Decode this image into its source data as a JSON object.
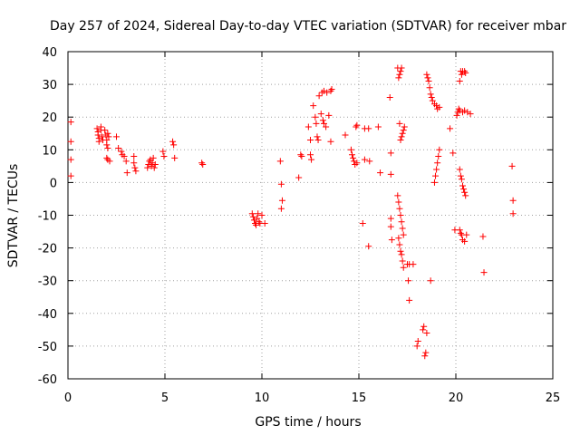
{
  "chart_data": {
    "type": "scatter",
    "title": "Day 257 of 2024, Sidereal Day-to-day VTEC variation (SDTVAR) for receiver mbar",
    "xlabel": "GPS time / hours",
    "ylabel": "SDTVAR / TECUs",
    "xlim": [
      0,
      25
    ],
    "ylim": [
      -60,
      40
    ],
    "grid": true,
    "marker": "+",
    "colors": {
      "points": "#ff0000",
      "grid": "#a0a0a0",
      "frame": "#000000"
    },
    "x_ticks": [
      "0",
      "5",
      "10",
      "15",
      "20",
      "25"
    ],
    "y_ticks": [
      "40",
      "30",
      "20",
      "10",
      "0",
      "-10",
      "-20",
      "-30",
      "-40",
      "-50",
      "-60"
    ],
    "series": [
      {
        "name": "SDTVAR",
        "points": [
          [
            0.15,
            18.5
          ],
          [
            0.15,
            12.5
          ],
          [
            0.15,
            7
          ],
          [
            0.15,
            2
          ],
          [
            1.5,
            16.5
          ],
          [
            1.55,
            15.5
          ],
          [
            1.55,
            14.5
          ],
          [
            1.6,
            13.5
          ],
          [
            1.6,
            12.5
          ],
          [
            1.7,
            17
          ],
          [
            1.7,
            16
          ],
          [
            1.75,
            14
          ],
          [
            1.8,
            13
          ],
          [
            1.9,
            16
          ],
          [
            1.95,
            14.5
          ],
          [
            2.0,
            13
          ],
          [
            2.0,
            11.5
          ],
          [
            2.05,
            15
          ],
          [
            2.05,
            10.5
          ],
          [
            2.1,
            14
          ],
          [
            2.0,
            7.5
          ],
          [
            2.05,
            7
          ],
          [
            2.15,
            6.5
          ],
          [
            2.5,
            14
          ],
          [
            2.6,
            10.5
          ],
          [
            2.75,
            9.5
          ],
          [
            2.8,
            8.5
          ],
          [
            2.9,
            8
          ],
          [
            3.0,
            6.5
          ],
          [
            3.05,
            3
          ],
          [
            3.4,
            8
          ],
          [
            3.4,
            6
          ],
          [
            3.45,
            4.5
          ],
          [
            3.5,
            3.5
          ],
          [
            4.1,
            4.5
          ],
          [
            4.15,
            5.5
          ],
          [
            4.2,
            6.5
          ],
          [
            4.25,
            7
          ],
          [
            4.3,
            5
          ],
          [
            4.35,
            6
          ],
          [
            4.4,
            7.5
          ],
          [
            4.45,
            4.5
          ],
          [
            4.5,
            5.5
          ],
          [
            4.9,
            9.5
          ],
          [
            4.95,
            8
          ],
          [
            5.4,
            12.5
          ],
          [
            5.45,
            11.5
          ],
          [
            5.5,
            7.5
          ],
          [
            6.9,
            6
          ],
          [
            6.95,
            5.5
          ],
          [
            9.5,
            -9.5
          ],
          [
            9.55,
            -10.5
          ],
          [
            9.6,
            -11.5
          ],
          [
            9.65,
            -12.5
          ],
          [
            9.7,
            -13
          ],
          [
            9.75,
            -11
          ],
          [
            9.8,
            -9.5
          ],
          [
            9.85,
            -12
          ],
          [
            9.9,
            -12.5
          ],
          [
            10.0,
            -10
          ],
          [
            10.15,
            -12.5
          ],
          [
            10.95,
            6.5
          ],
          [
            11.0,
            -0.5
          ],
          [
            11.05,
            -5.5
          ],
          [
            11.0,
            -8
          ],
          [
            11.9,
            1.5
          ],
          [
            12.0,
            8.5
          ],
          [
            12.05,
            8
          ],
          [
            12.4,
            17
          ],
          [
            12.5,
            13
          ],
          [
            12.55,
            7
          ],
          [
            12.5,
            8.5
          ],
          [
            12.65,
            23.5
          ],
          [
            12.75,
            20
          ],
          [
            12.8,
            18
          ],
          [
            12.85,
            14
          ],
          [
            12.9,
            13
          ],
          [
            12.95,
            26.5
          ],
          [
            13.05,
            21
          ],
          [
            13.1,
            27.5
          ],
          [
            13.15,
            19
          ],
          [
            13.2,
            18
          ],
          [
            13.2,
            28
          ],
          [
            13.3,
            17
          ],
          [
            13.35,
            27.5
          ],
          [
            13.45,
            20.5
          ],
          [
            13.55,
            28
          ],
          [
            13.55,
            12.5
          ],
          [
            13.6,
            28.5
          ],
          [
            14.3,
            14.5
          ],
          [
            14.6,
            10
          ],
          [
            14.65,
            8.5
          ],
          [
            14.7,
            7.5
          ],
          [
            14.75,
            6.5
          ],
          [
            14.8,
            5.5
          ],
          [
            14.85,
            17
          ],
          [
            14.9,
            17.5
          ],
          [
            14.9,
            6
          ],
          [
            15.2,
            -12.5
          ],
          [
            15.3,
            7
          ],
          [
            15.3,
            16.5
          ],
          [
            15.5,
            -19.5
          ],
          [
            15.55,
            6.5
          ],
          [
            15.5,
            16.5
          ],
          [
            16.0,
            17
          ],
          [
            16.1,
            3
          ],
          [
            16.6,
            26
          ],
          [
            16.65,
            9
          ],
          [
            16.65,
            2.5
          ],
          [
            16.65,
            -11
          ],
          [
            16.65,
            -13.5
          ],
          [
            16.7,
            -17.5
          ],
          [
            17.0,
            35
          ],
          [
            17.05,
            32
          ],
          [
            17.1,
            33
          ],
          [
            17.15,
            34
          ],
          [
            17.2,
            35
          ],
          [
            17.1,
            18
          ],
          [
            17.15,
            13
          ],
          [
            17.2,
            14
          ],
          [
            17.25,
            15
          ],
          [
            17.3,
            16
          ],
          [
            17.35,
            17
          ],
          [
            17.0,
            -4
          ],
          [
            17.05,
            -6
          ],
          [
            17.1,
            -8
          ],
          [
            17.15,
            -10
          ],
          [
            17.2,
            -12
          ],
          [
            17.25,
            -14
          ],
          [
            17.3,
            -16
          ],
          [
            17.05,
            -17
          ],
          [
            17.1,
            -19
          ],
          [
            17.15,
            -21
          ],
          [
            17.2,
            -22
          ],
          [
            17.25,
            -24
          ],
          [
            17.3,
            -26
          ],
          [
            17.5,
            -25
          ],
          [
            17.55,
            -30
          ],
          [
            17.6,
            -36
          ],
          [
            17.6,
            -25
          ],
          [
            17.8,
            -25
          ],
          [
            18.0,
            -50
          ],
          [
            18.05,
            -48.5
          ],
          [
            18.3,
            -45
          ],
          [
            18.35,
            -44
          ],
          [
            18.4,
            -53
          ],
          [
            18.45,
            -52
          ],
          [
            18.5,
            -46
          ],
          [
            18.5,
            33
          ],
          [
            18.55,
            32
          ],
          [
            18.6,
            31
          ],
          [
            18.65,
            29
          ],
          [
            18.7,
            27
          ],
          [
            18.75,
            26
          ],
          [
            18.8,
            25
          ],
          [
            18.9,
            24
          ],
          [
            19.0,
            23.5
          ],
          [
            19.05,
            22.5
          ],
          [
            19.15,
            23
          ],
          [
            18.7,
            -30
          ],
          [
            18.9,
            0
          ],
          [
            18.95,
            2
          ],
          [
            19.0,
            4
          ],
          [
            19.05,
            6
          ],
          [
            19.1,
            8
          ],
          [
            19.15,
            10
          ],
          [
            19.7,
            16.5
          ],
          [
            19.85,
            9
          ],
          [
            19.95,
            -14.5
          ],
          [
            20.05,
            20.5
          ],
          [
            20.15,
            22.5
          ],
          [
            20.2,
            31
          ],
          [
            20.25,
            34
          ],
          [
            20.3,
            33
          ],
          [
            20.35,
            34
          ],
          [
            20.45,
            34
          ],
          [
            20.5,
            33.5
          ],
          [
            20.1,
            21.5
          ],
          [
            20.2,
            22
          ],
          [
            20.35,
            21.5
          ],
          [
            20.45,
            22
          ],
          [
            20.6,
            21.5
          ],
          [
            20.75,
            21
          ],
          [
            20.2,
            4
          ],
          [
            20.25,
            2
          ],
          [
            20.3,
            1
          ],
          [
            20.35,
            -1
          ],
          [
            20.4,
            -2
          ],
          [
            20.45,
            -3
          ],
          [
            20.5,
            -4
          ],
          [
            20.2,
            -14.5
          ],
          [
            20.25,
            -15.5
          ],
          [
            20.3,
            -16
          ],
          [
            20.35,
            -17.5
          ],
          [
            20.45,
            -18
          ],
          [
            20.55,
            -16
          ],
          [
            21.4,
            -16.5
          ],
          [
            21.45,
            -27.5
          ],
          [
            22.9,
            5
          ],
          [
            22.95,
            -5.5
          ],
          [
            22.95,
            -9.5
          ]
        ]
      }
    ]
  }
}
